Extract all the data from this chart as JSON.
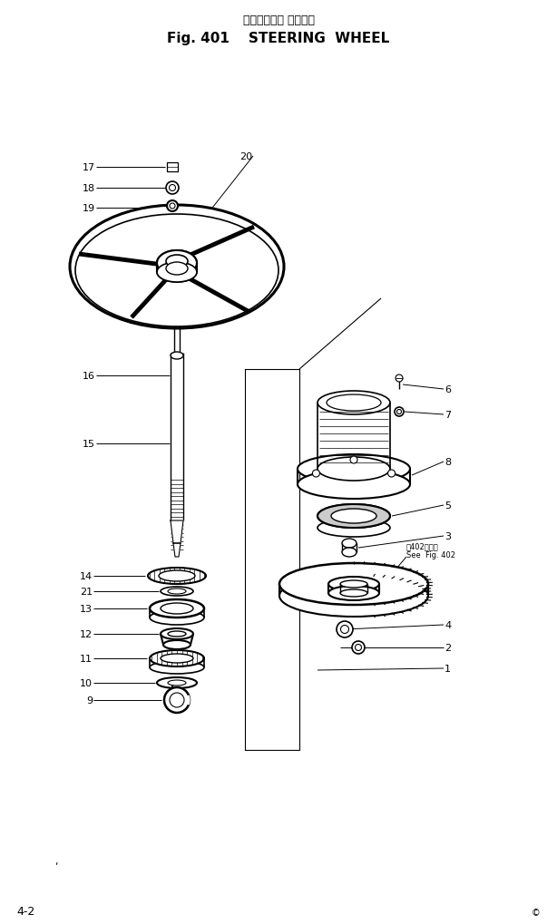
{
  "title_jp": "ステアリング ホイール",
  "title_en": "Fig. 401    STEERING  WHEEL",
  "bg_color": "#ffffff",
  "line_color": "#000000",
  "page_label": "4-2",
  "fig_note_jp": "第402図参照",
  "fig_note_en": "See  Fig. 402"
}
